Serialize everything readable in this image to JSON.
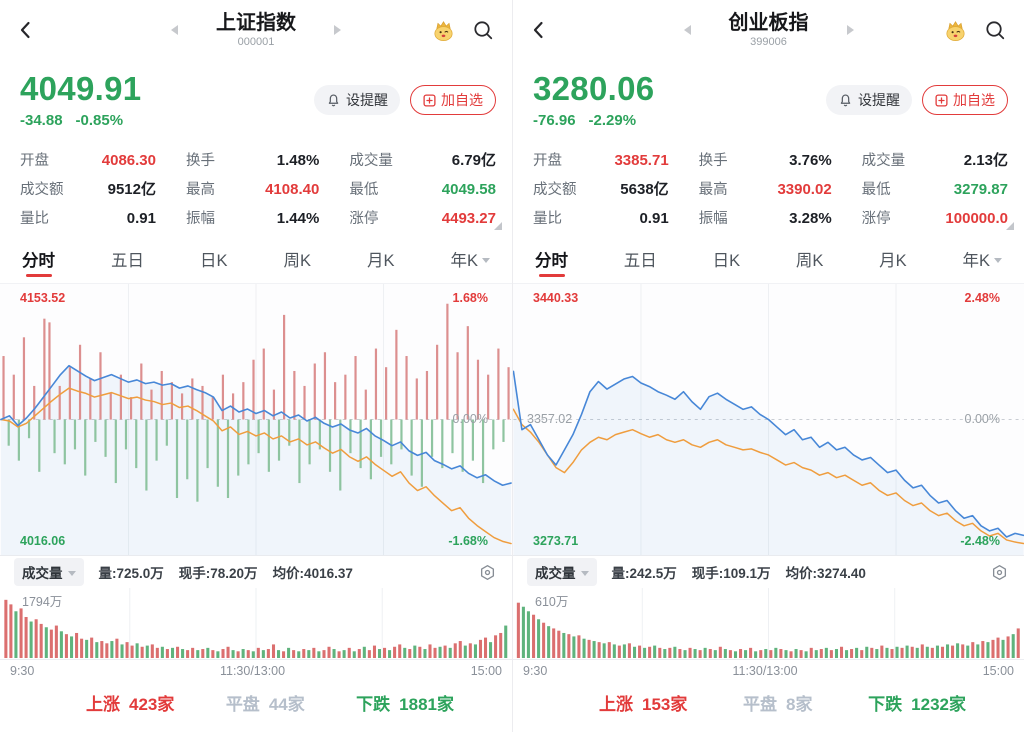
{
  "colors": {
    "red": "#e23b3b",
    "green": "#2da35c",
    "blue": "#4787d7",
    "orange": "#ef9d3e",
    "bar_red": "#dc8f8f",
    "bar_green": "#8ec4a0",
    "vol_red": "#db6f6f",
    "vol_green": "#5fb37d",
    "gray": "#9aa0a6"
  },
  "panels": [
    {
      "header": {
        "title": "上证指数",
        "code": "000001"
      },
      "quote": {
        "price": "4049.91",
        "change": "-34.88",
        "change_pct": "-0.85%",
        "tone": "green"
      },
      "actions": {
        "alert": "设提醒",
        "watchlist": "加自选"
      },
      "stats": [
        {
          "label": "开盘",
          "value": "4086.30",
          "tone": "red"
        },
        {
          "label": "换手",
          "value": "1.48%",
          "tone": "dark"
        },
        {
          "label": "成交量",
          "value": "6.79亿",
          "tone": "dark"
        },
        {
          "label": "成交额",
          "value": "9512亿",
          "tone": "dark"
        },
        {
          "label": "最高",
          "value": "4108.40",
          "tone": "red"
        },
        {
          "label": "最低",
          "value": "4049.58",
          "tone": "green"
        },
        {
          "label": "量比",
          "value": "0.91",
          "tone": "dark"
        },
        {
          "label": "振幅",
          "value": "1.44%",
          "tone": "dark"
        },
        {
          "label": "涨停",
          "value": "4493.27",
          "tone": "red"
        }
      ],
      "tabs": [
        {
          "label": "分时"
        },
        {
          "label": "五日"
        },
        {
          "label": "日K"
        },
        {
          "label": "周K"
        },
        {
          "label": "月K"
        },
        {
          "label": "年K"
        }
      ],
      "minute_chart": {
        "high_value": "4153.52",
        "high_pct": "1.68%",
        "mid_value": "",
        "mid_pct": "0.00%",
        "low_value": "4016.06",
        "low_pct": "-1.68%",
        "range_pct": 1.68,
        "price_line": [
          0.0,
          0.05,
          -0.08,
          0.02,
          0.15,
          0.3,
          0.45,
          0.6,
          0.72,
          0.65,
          0.58,
          0.52,
          0.56,
          0.6,
          0.55,
          0.5,
          0.53,
          0.48,
          0.5,
          0.46,
          0.48,
          0.42,
          0.45,
          0.4,
          0.36,
          0.3,
          0.12,
          0.18,
          0.1,
          0.14,
          0.08,
          0.12,
          0.05,
          0.1,
          0.02,
          0.06,
          -0.02,
          0.03,
          -0.05,
          -0.1,
          -0.06,
          -0.14,
          -0.18,
          -0.12,
          -0.22,
          -0.28,
          -0.35,
          -0.3,
          -0.42,
          -0.48,
          -0.44,
          -0.55,
          -0.6,
          -0.66,
          -0.62,
          -0.72,
          -0.78,
          -0.74,
          -0.82,
          -0.88,
          -0.85
        ],
        "avg_line": [
          0.0,
          -0.02,
          -0.1,
          -0.05,
          0.05,
          0.15,
          0.25,
          0.34,
          0.42,
          0.38,
          0.35,
          0.3,
          0.33,
          0.36,
          0.32,
          0.28,
          0.3,
          0.26,
          0.24,
          0.2,
          0.22,
          0.16,
          0.18,
          0.12,
          0.05,
          -0.02,
          -0.15,
          -0.1,
          -0.2,
          -0.16,
          -0.22,
          -0.18,
          -0.26,
          -0.22,
          -0.3,
          -0.26,
          -0.34,
          -0.3,
          -0.38,
          -0.45,
          -0.4,
          -0.5,
          -0.56,
          -0.5,
          -0.6,
          -0.68,
          -0.76,
          -0.7,
          -0.85,
          -0.95,
          -0.9,
          -1.02,
          -1.12,
          -1.22,
          -1.18,
          -1.32,
          -1.42,
          -1.5,
          -1.58,
          -1.63,
          -1.66
        ],
        "tick_bars": [
          0.85,
          -0.35,
          0.6,
          -0.55,
          1.1,
          -0.25,
          0.45,
          -0.7,
          1.35,
          1.3,
          -0.45,
          0.45,
          -0.6,
          0.7,
          -0.4,
          1.0,
          -0.75,
          0.55,
          -0.3,
          0.9,
          -0.5,
          0.35,
          -0.85,
          0.6,
          -0.4,
          0.3,
          -0.65,
          0.75,
          -0.95,
          0.4,
          -0.55,
          0.65,
          -0.35,
          0.5,
          -1.05,
          0.35,
          -0.8,
          0.55,
          -1.1,
          0.45,
          -0.65,
          0.3,
          -0.9,
          0.6,
          -1.05,
          0.35,
          -0.75,
          0.5,
          -0.6,
          0.8,
          -0.45,
          0.95,
          -0.7,
          0.4,
          -0.55,
          1.4,
          -0.35,
          0.65,
          -0.85,
          0.45,
          -0.6,
          0.75,
          -0.4,
          0.9,
          -0.7,
          0.5,
          -0.95,
          0.6,
          -0.45,
          0.85,
          -0.65,
          0.4,
          -0.8,
          0.95,
          -0.5,
          0.7,
          -0.6,
          1.2,
          -0.4,
          0.85,
          -0.75,
          0.55,
          -0.9,
          0.65,
          -0.5,
          1.0,
          -0.65,
          1.55,
          -0.45,
          0.9,
          -0.7,
          1.25,
          -0.55,
          0.8,
          -0.85,
          0.6,
          -0.4,
          0.95,
          -0.3,
          0.7
        ]
      },
      "volume_panel": {
        "selector": "成交量",
        "vol": "量:725.0万",
        "hand": "现手:78.20万",
        "avg": "均价:4016.37",
        "max_label": "1794万",
        "time_axis": [
          "9:30",
          "11:30/13:00",
          "15:00"
        ],
        "bars": [
          1.0,
          0.92,
          -0.8,
          0.85,
          0.7,
          -0.62,
          0.66,
          0.58,
          -0.52,
          0.48,
          0.55,
          -0.45,
          0.4,
          -0.36,
          0.42,
          0.32,
          -0.3,
          0.34,
          -0.26,
          0.28,
          0.24,
          -0.28,
          0.32,
          -0.22,
          0.26,
          0.2,
          -0.24,
          0.18,
          -0.2,
          0.22,
          0.16,
          -0.18,
          0.14,
          -0.16,
          0.18,
          -0.14,
          0.12,
          0.16,
          -0.12,
          0.14,
          -0.16,
          0.12,
          -0.1,
          0.14,
          0.18,
          -0.12,
          0.1,
          -0.14,
          0.12,
          -0.1,
          0.16,
          -0.12,
          0.14,
          0.22,
          -0.12,
          0.1,
          -0.16,
          0.12,
          -0.1,
          0.14,
          -0.12,
          0.16,
          -0.1,
          0.12,
          0.18,
          -0.14,
          0.1,
          -0.12,
          0.16,
          -0.1,
          0.14,
          -0.18,
          0.12,
          0.2,
          -0.14,
          0.16,
          -0.12,
          0.18,
          0.22,
          -0.16,
          0.14,
          -0.2,
          0.18,
          -0.14,
          0.22,
          0.16,
          -0.18,
          0.2,
          -0.16,
          0.24,
          0.28,
          -0.2,
          0.24,
          -0.22,
          0.3,
          0.34,
          -0.26,
          0.38,
          0.42,
          -0.55
        ]
      },
      "breadth": {
        "up_label": "上涨",
        "up_count": "423家",
        "flat_label": "平盘",
        "flat_count": "44家",
        "down_label": "下跌",
        "down_count": "1881家"
      }
    },
    {
      "header": {
        "title": "创业板指",
        "code": "399006"
      },
      "quote": {
        "price": "3280.06",
        "change": "-76.96",
        "change_pct": "-2.29%",
        "tone": "green"
      },
      "actions": {
        "alert": "设提醒",
        "watchlist": "加自选"
      },
      "stats": [
        {
          "label": "开盘",
          "value": "3385.71",
          "tone": "red"
        },
        {
          "label": "换手",
          "value": "3.76%",
          "tone": "dark"
        },
        {
          "label": "成交量",
          "value": "2.13亿",
          "tone": "dark"
        },
        {
          "label": "成交额",
          "value": "5638亿",
          "tone": "dark"
        },
        {
          "label": "最高",
          "value": "3390.02",
          "tone": "red"
        },
        {
          "label": "最低",
          "value": "3279.87",
          "tone": "green"
        },
        {
          "label": "量比",
          "value": "0.91",
          "tone": "dark"
        },
        {
          "label": "振幅",
          "value": "3.28%",
          "tone": "dark"
        },
        {
          "label": "涨停",
          "value": "100000.0",
          "tone": "red"
        }
      ],
      "tabs": [
        {
          "label": "分时"
        },
        {
          "label": "五日"
        },
        {
          "label": "日K"
        },
        {
          "label": "周K"
        },
        {
          "label": "月K"
        },
        {
          "label": "年K"
        }
      ],
      "minute_chart": {
        "high_value": "3440.33",
        "high_pct": "2.48%",
        "mid_value": "3357.02",
        "mid_pct": "0.00%",
        "low_value": "3273.71",
        "low_pct": "-2.48%",
        "range_pct": 2.48,
        "price_line": [
          0.95,
          -0.2,
          -0.1,
          -0.4,
          -0.7,
          -0.9,
          -0.6,
          -0.3,
          0.1,
          0.55,
          0.75,
          0.6,
          0.7,
          0.8,
          0.85,
          0.72,
          0.65,
          0.55,
          0.48,
          0.4,
          0.55,
          0.35,
          0.2,
          0.45,
          0.52,
          0.4,
          0.3,
          0.2,
          0.25,
          0.1,
          0.0,
          -0.15,
          -0.3,
          -0.2,
          -0.4,
          -0.35,
          -0.55,
          -0.45,
          -0.6,
          -0.55,
          -0.7,
          -0.8,
          -0.75,
          -0.9,
          -1.05,
          -1.0,
          -1.2,
          -1.35,
          -1.3,
          -1.5,
          -1.65,
          -1.6,
          -1.8,
          -1.95,
          -1.9,
          -2.1,
          -2.2,
          -2.15,
          -2.32,
          -2.25,
          -2.29
        ],
        "avg_line": [
          0.2,
          -0.1,
          -0.25,
          -0.45,
          -0.7,
          -0.95,
          -1.05,
          -0.85,
          -0.6,
          -0.45,
          -0.35,
          -0.4,
          -0.3,
          -0.25,
          -0.2,
          -0.28,
          -0.35,
          -0.3,
          -0.4,
          -0.45,
          -0.4,
          -0.5,
          -0.55,
          -0.45,
          -0.4,
          -0.5,
          -0.55,
          -0.6,
          -0.58,
          -0.65,
          -0.7,
          -0.8,
          -0.9,
          -0.85,
          -0.95,
          -1.0,
          -1.1,
          -1.05,
          -1.15,
          -1.1,
          -1.2,
          -1.3,
          -1.25,
          -1.4,
          -1.5,
          -1.45,
          -1.6,
          -1.7,
          -1.65,
          -1.8,
          -1.9,
          -1.85,
          -2.0,
          -2.1,
          -2.05,
          -2.2,
          -2.3,
          -2.25,
          -2.38,
          -2.42,
          -2.45
        ],
        "tick_bars": []
      },
      "volume_panel": {
        "selector": "成交量",
        "vol": "量:242.5万",
        "hand": "现手:109.1万",
        "avg": "均价:3274.40",
        "max_label": "610万",
        "time_axis": [
          "9:30",
          "11:30/13:00",
          "15:00"
        ],
        "bars": [
          0.95,
          -0.88,
          -0.8,
          0.74,
          -0.66,
          0.6,
          -0.54,
          0.5,
          0.46,
          -0.42,
          0.4,
          -0.36,
          0.38,
          -0.32,
          0.3,
          -0.28,
          0.26,
          -0.24,
          0.26,
          -0.22,
          0.2,
          -0.22,
          0.24,
          -0.18,
          0.2,
          -0.16,
          0.18,
          -0.2,
          0.16,
          -0.14,
          0.16,
          -0.18,
          0.14,
          -0.12,
          0.16,
          -0.14,
          0.12,
          -0.16,
          0.14,
          -0.12,
          0.18,
          -0.14,
          0.12,
          -0.1,
          0.14,
          -0.12,
          0.16,
          -0.1,
          0.12,
          -0.14,
          0.12,
          -0.16,
          0.14,
          -0.12,
          0.1,
          -0.14,
          0.12,
          -0.1,
          0.16,
          -0.12,
          0.14,
          -0.16,
          0.12,
          -0.14,
          0.18,
          -0.12,
          0.14,
          -0.16,
          0.12,
          -0.18,
          0.16,
          -0.14,
          0.2,
          -0.16,
          0.14,
          -0.18,
          0.16,
          -0.2,
          0.18,
          -0.16,
          0.22,
          -0.18,
          0.16,
          -0.2,
          0.18,
          -0.22,
          0.2,
          -0.24,
          0.22,
          -0.2,
          0.26,
          -0.22,
          0.28,
          -0.26,
          0.3,
          0.34,
          -0.3,
          0.36,
          -0.4,
          0.5
        ]
      },
      "breadth": {
        "up_label": "上涨",
        "up_count": "153家",
        "flat_label": "平盘",
        "flat_count": "8家",
        "down_label": "下跌",
        "down_count": "1232家"
      }
    }
  ]
}
